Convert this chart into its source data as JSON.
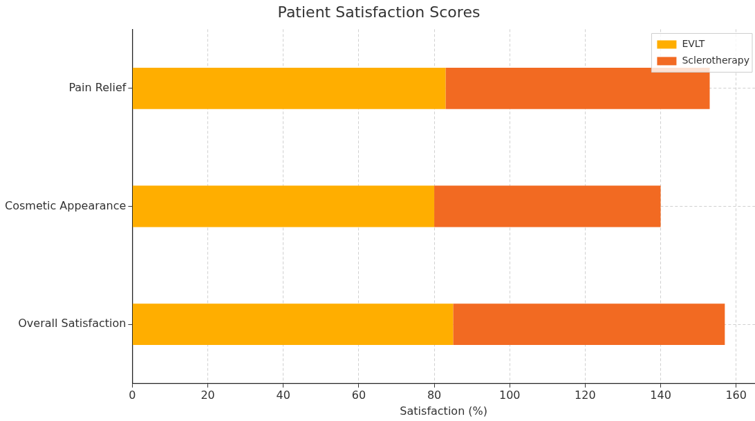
{
  "chart_data": {
    "type": "bar",
    "orientation": "horizontal",
    "stacked": true,
    "title": "Patient Satisfaction Scores",
    "xlabel": "Satisfaction (%)",
    "categories": [
      "Pain Relief",
      "Cosmetic Appearance",
      "Overall Satisfaction"
    ],
    "series": [
      {
        "name": "EVLT",
        "color": "#ffae00",
        "values": [
          83,
          80,
          85
        ]
      },
      {
        "name": "Sclerotherapy",
        "color": "#f26a22",
        "values": [
          70,
          60,
          72
        ]
      }
    ],
    "xlim": [
      0,
      165
    ],
    "xticks": [
      0,
      20,
      40,
      60,
      80,
      100,
      120,
      140,
      160
    ],
    "grid": true,
    "legend": "top right"
  }
}
